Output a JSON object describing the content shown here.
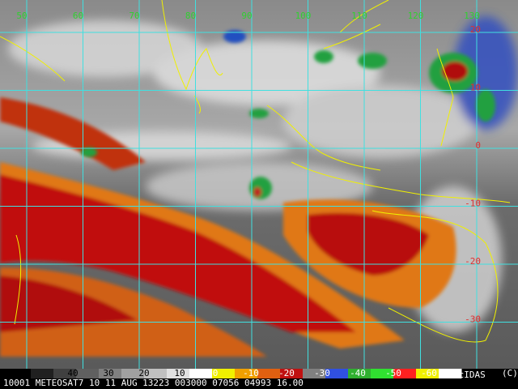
{
  "map": {
    "lon_labels": [
      "50",
      "60",
      "70",
      "80",
      "90",
      "100",
      "110",
      "120",
      "130"
    ],
    "lat_labels": [
      "20",
      "10",
      "0",
      "-10",
      "-20",
      "-30"
    ],
    "colorbar_labels": [
      "40",
      "30",
      "20",
      "10",
      "0",
      "-10",
      "-20",
      "-30",
      "-40",
      "-50",
      "-60"
    ],
    "caption": "10001 METEOSAT7 10 11 AUG 13223 003000 07056 04993 16.00",
    "brand": "McIDAS",
    "copyright": "(C)"
  }
}
